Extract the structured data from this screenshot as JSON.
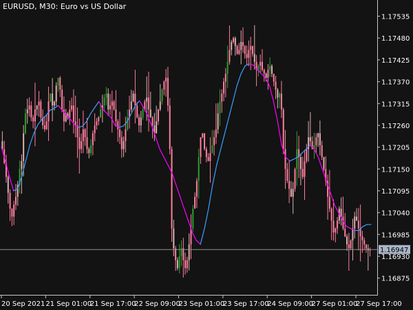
{
  "chart_title": "EURUSD, M30:  Euro vs US Dollar",
  "colors": {
    "background": "#131313",
    "axis": "#c8c8c8",
    "bull_candle": "#2e9e2e",
    "bear_candle": "#ff7f9f",
    "neutral_candle": "#e0b0b0",
    "ma_up": "#3aa0ff",
    "ma_down": "#ff00ff",
    "bid_line": "#909090",
    "price_tag": "#a9b5c6"
  },
  "chart_data": {
    "type": "candlestick",
    "title": "EURUSD, M30:  Euro vs US Dollar",
    "y_ticks": [
      "1.17535",
      "1.17480",
      "1.17425",
      "1.17370",
      "1.17315",
      "1.17260",
      "1.17205",
      "1.17150",
      "1.17095",
      "1.17040",
      "1.16985",
      "1.16930",
      "1.16875"
    ],
    "y_tick_values": [
      1.17535,
      1.1748,
      1.17425,
      1.1737,
      1.17315,
      1.1726,
      1.17205,
      1.1715,
      1.17095,
      1.1704,
      1.16985,
      1.1693,
      1.16875
    ],
    "x_ticks": [
      "20 Sep 2021",
      "21 Sep 01:00",
      "21 Sep 17:00",
      "22 Sep 09:00",
      "23 Sep 01:00",
      "23 Sep 17:00",
      "24 Sep 09:00",
      "27 Sep 01:00",
      "27 Sep 17:00"
    ],
    "ylim": [
      1.16838,
      1.17562
    ],
    "current_price": "1.16947",
    "current_price_value": 1.16947,
    "close_series": [
      1.172,
      1.17165,
      1.1713,
      1.1709,
      1.1705,
      1.1703,
      1.1706,
      1.1708,
      1.1711,
      1.1715,
      1.1717,
      1.1724,
      1.1729,
      1.173,
      1.1731,
      1.1728,
      1.1727,
      1.173,
      1.1731,
      1.1732,
      1.1728,
      1.1726,
      1.1725,
      1.1727,
      1.1732,
      1.1734,
      1.1731,
      1.1732,
      1.1736,
      1.1738,
      1.1735,
      1.173,
      1.1727,
      1.1729,
      1.1728,
      1.173,
      1.1731,
      1.1727,
      1.1726,
      1.1723,
      1.172,
      1.1722,
      1.1725,
      1.1723,
      1.172,
      1.1719,
      1.1721,
      1.1724,
      1.1726,
      1.1727,
      1.1728,
      1.173,
      1.1731,
      1.1733,
      1.1734,
      1.173,
      1.1731,
      1.1732,
      1.173,
      1.1727,
      1.1725,
      1.1723,
      1.172,
      1.1722,
      1.1725,
      1.1728,
      1.173,
      1.1732,
      1.1734,
      1.1731,
      1.1728,
      1.1726,
      1.1728,
      1.173,
      1.1732,
      1.1733,
      1.173,
      1.1728,
      1.1726,
      1.1724,
      1.1727,
      1.173,
      1.1732,
      1.1735,
      1.1737,
      1.1738,
      1.1731,
      1.172,
      1.17,
      1.1695,
      1.1692,
      1.169,
      1.1693,
      1.1695,
      1.1692,
      1.169,
      1.1692,
      1.1696,
      1.17,
      1.1705,
      1.1708,
      1.1712,
      1.1718,
      1.1723,
      1.1724,
      1.172,
      1.1718,
      1.1717,
      1.1719,
      1.1721,
      1.1723,
      1.1725,
      1.1729,
      1.1732,
      1.1734,
      1.1737,
      1.1739,
      1.1742,
      1.1745,
      1.1747,
      1.1748,
      1.1746,
      1.1744,
      1.1745,
      1.1747,
      1.1746,
      1.1744,
      1.1743,
      1.1745,
      1.1746,
      1.1744,
      1.1742,
      1.174,
      1.1741,
      1.1742,
      1.174,
      1.1739,
      1.1738,
      1.174,
      1.1741,
      1.1739,
      1.1737,
      1.1735,
      1.1733,
      1.1734,
      1.173,
      1.172,
      1.1715,
      1.1712,
      1.171,
      1.1708,
      1.171,
      1.1715,
      1.172,
      1.1718,
      1.1715,
      1.1713,
      1.1717,
      1.172,
      1.1723,
      1.1722,
      1.172,
      1.1721,
      1.1723,
      1.1724,
      1.1721,
      1.1718,
      1.1715,
      1.1712,
      1.1708,
      1.1705,
      1.1702,
      1.1699,
      1.17,
      1.1702,
      1.1705,
      1.1703,
      1.17,
      1.1698,
      1.1696,
      1.1695,
      1.1697,
      1.17,
      1.1703,
      1.1702,
      1.17,
      1.1698,
      1.1697,
      1.1696,
      1.1695,
      1.16945,
      1.16947
    ],
    "moving_average": [
      1.17205,
      1.1717,
      1.1713,
      1.17095,
      1.171,
      1.1713,
      1.1717,
      1.1721,
      1.1724,
      1.17262,
      1.17275,
      1.17285,
      1.17298,
      1.17303,
      1.1731,
      1.17298,
      1.17285,
      1.17275,
      1.17262,
      1.17255,
      1.17258,
      1.1727,
      1.1729,
      1.17305,
      1.1732,
      1.173,
      1.1729,
      1.1728,
      1.1726,
      1.17255,
      1.17258,
      1.1727,
      1.1729,
      1.1731,
      1.17322,
      1.17305,
      1.17285,
      1.1726,
      1.1723,
      1.172,
      1.1718,
      1.1716,
      1.1714,
      1.1711,
      1.1708,
      1.1705,
      1.1702,
      1.1699,
      1.1697,
      1.1696,
      1.17,
      1.1705,
      1.1711,
      1.1716,
      1.172,
      1.1724,
      1.1728,
      1.1732,
      1.1736,
      1.1739,
      1.1741,
      1.17415,
      1.17412,
      1.174,
      1.1739,
      1.1738,
      1.1736,
      1.1732,
      1.1727,
      1.1721,
      1.1718,
      1.1717,
      1.17175,
      1.1718,
      1.1719,
      1.172,
      1.1721,
      1.172,
      1.1718,
      1.1715,
      1.1712,
      1.1709,
      1.1706,
      1.1704,
      1.1702,
      1.17005,
      1.17,
      1.16995,
      1.16995,
      1.17005,
      1.1701,
      1.1701
    ]
  }
}
